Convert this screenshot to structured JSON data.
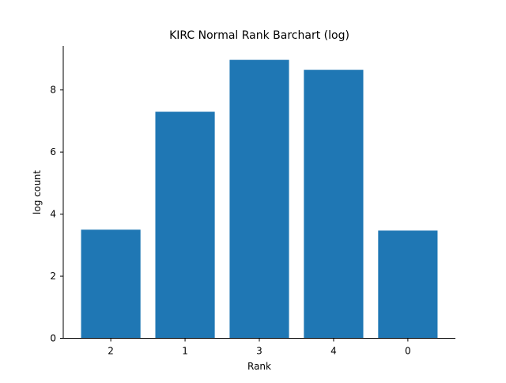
{
  "chart_data": {
    "type": "bar",
    "title": "KIRC Normal Rank Barchart (log)",
    "xlabel": "Rank",
    "ylabel": "log count",
    "categories": [
      "2",
      "1",
      "3",
      "4",
      "0"
    ],
    "values": [
      3.5,
      7.3,
      8.97,
      8.65,
      3.47
    ],
    "ylim": [
      0,
      9.42
    ],
    "yticks": [
      0,
      2,
      4,
      6,
      8
    ],
    "grid": false,
    "bar_color": "#1f77b4"
  }
}
